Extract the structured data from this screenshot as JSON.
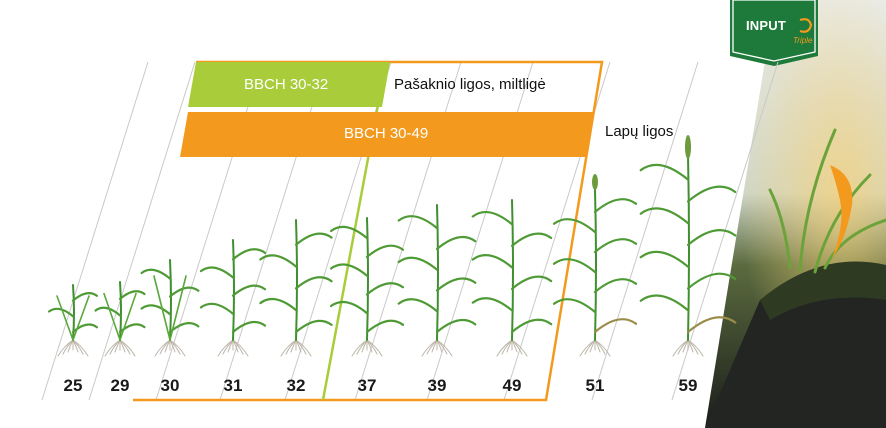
{
  "brand": {
    "name": "INPUT",
    "sub": "Triple",
    "colors": {
      "badge": "#1e7a3a",
      "swoosh": "#f39a1e"
    }
  },
  "bars": [
    {
      "label": "BBCH 30-32",
      "side_label": "Pašaknio ligos, miltligė",
      "color": "#a8cc3a"
    },
    {
      "label": "BBCH 30-49",
      "side_label": "Lapų ligos",
      "color": "#f39a1e"
    }
  ],
  "stages": [
    "25",
    "29",
    "30",
    "31",
    "32",
    "37",
    "39",
    "49",
    "51",
    "59"
  ],
  "colors": {
    "orange": "#f39a1e",
    "green": "#a8cc3a",
    "plant": "#3f8f2f",
    "grid_line": "#c9c9c9"
  },
  "background_photo": {
    "subject": "young cereal sprouts on dark soil at sunset"
  }
}
